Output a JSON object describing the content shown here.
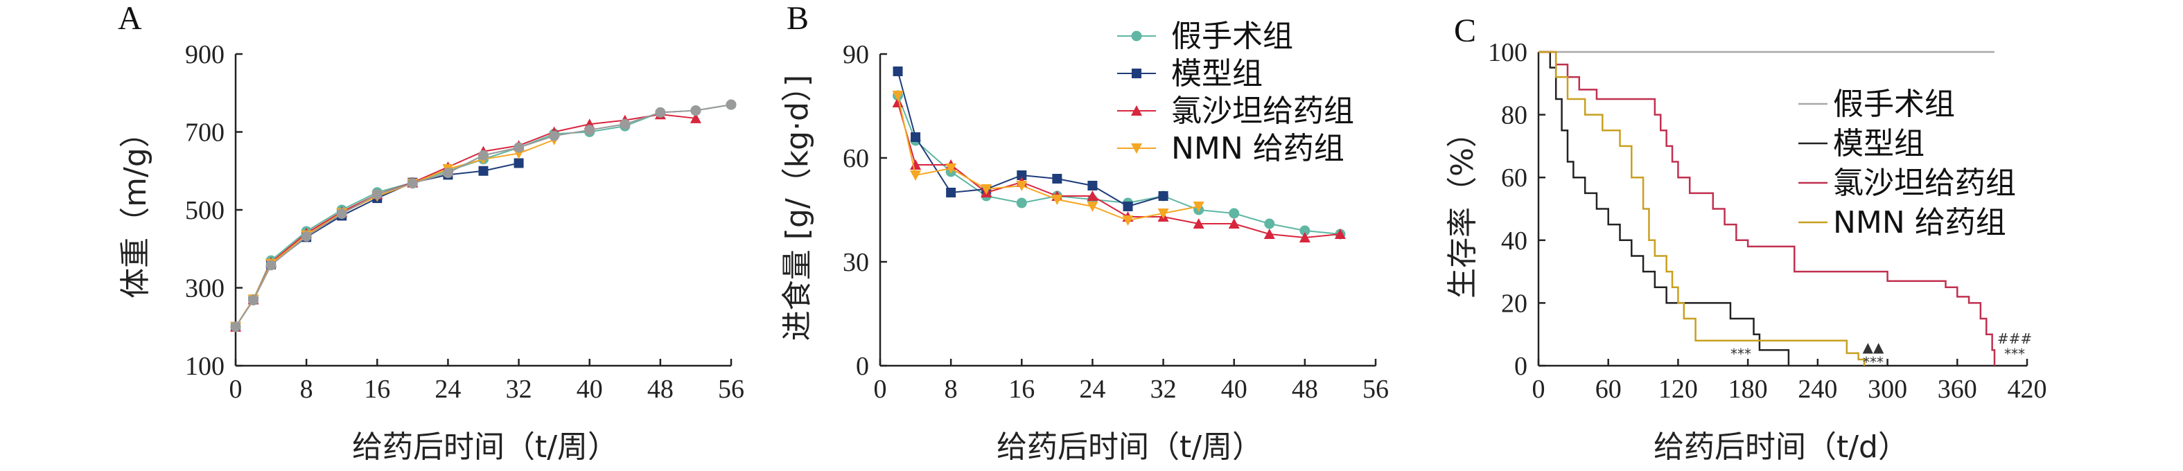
{
  "chart_data": [
    {
      "panel": "A",
      "type": "line",
      "ylabel": "体重（m/g）",
      "xlabel": "给药后时间（t/周）",
      "xlim": [
        0,
        56
      ],
      "ylim": [
        100,
        900
      ],
      "xticks": [
        0,
        8,
        16,
        24,
        32,
        40,
        48,
        56
      ],
      "yticks": [
        100,
        300,
        500,
        700,
        900
      ],
      "series": [
        {
          "name": "假手术组",
          "color": "#5fb6a3",
          "marker": "circle",
          "x": [
            0,
            2,
            4,
            8,
            12,
            16,
            20,
            24,
            28,
            32,
            36,
            40,
            44,
            48,
            52,
            56
          ],
          "y": [
            200,
            270,
            370,
            445,
            500,
            545,
            570,
            600,
            630,
            660,
            695,
            700,
            715,
            750,
            755,
            770
          ]
        },
        {
          "name": "模型组",
          "color": "#1f3d7a",
          "marker": "square",
          "x": [
            0,
            2,
            4,
            8,
            12,
            16,
            20,
            24,
            28,
            32
          ],
          "y": [
            200,
            270,
            360,
            430,
            485,
            530,
            570,
            590,
            600,
            620
          ]
        },
        {
          "name": "氯沙坦给药组",
          "color": "#d7263d",
          "marker": "triangle-up",
          "x": [
            0,
            2,
            4,
            8,
            12,
            16,
            20,
            24,
            28,
            32,
            36,
            40,
            44,
            48,
            52
          ],
          "y": [
            200,
            270,
            365,
            440,
            495,
            540,
            570,
            610,
            650,
            665,
            700,
            720,
            730,
            745,
            735
          ]
        },
        {
          "name": "NMN 给药组",
          "color": "#f5a623",
          "marker": "triangle-down",
          "x": [
            0,
            2,
            4,
            8,
            12,
            16,
            20,
            24,
            28,
            32,
            36
          ],
          "y": [
            200,
            270,
            362,
            435,
            492,
            535,
            568,
            605,
            630,
            645,
            680
          ]
        },
        {
          "name": "",
          "color": "#9a9a9a",
          "marker": "circle",
          "x": [
            0,
            2,
            4,
            8,
            12,
            16,
            20,
            24,
            28,
            32,
            36,
            40,
            44,
            48,
            52,
            56
          ],
          "y": [
            200,
            268,
            358,
            432,
            490,
            540,
            568,
            595,
            640,
            660,
            690,
            705,
            720,
            750,
            755,
            770
          ]
        }
      ]
    },
    {
      "panel": "B",
      "type": "line",
      "ylabel": "进食量 [g/（kg·d）]",
      "xlabel": "给药后时间（t/周）",
      "xlim": [
        0,
        56
      ],
      "ylim": [
        0,
        90
      ],
      "xticks": [
        0,
        8,
        16,
        24,
        32,
        40,
        48,
        56
      ],
      "yticks": [
        0,
        30,
        60,
        90
      ],
      "legend": "top-right",
      "series": [
        {
          "name": "假手术组",
          "color": "#5fb6a3",
          "marker": "circle",
          "x": [
            2,
            4,
            8,
            12,
            16,
            20,
            24,
            28,
            32,
            36,
            40,
            44,
            48,
            52
          ],
          "y": [
            78,
            65,
            56,
            49,
            47,
            49,
            48,
            47,
            49,
            45,
            44,
            41,
            39,
            38
          ]
        },
        {
          "name": "模型组",
          "color": "#1f3d7a",
          "marker": "square",
          "x": [
            2,
            4,
            8,
            12,
            16,
            20,
            24,
            28,
            32
          ],
          "y": [
            85,
            66,
            50,
            51,
            55,
            54,
            52,
            46,
            49
          ]
        },
        {
          "name": "氯沙坦给药组",
          "color": "#d7263d",
          "marker": "triangle-up",
          "x": [
            2,
            4,
            8,
            12,
            16,
            20,
            24,
            28,
            32,
            36,
            40,
            44,
            48,
            52
          ],
          "y": [
            76,
            58,
            58,
            50,
            53,
            49,
            49,
            43,
            43,
            41,
            41,
            38,
            37,
            38
          ]
        },
        {
          "name": "NMN 给药组",
          "color": "#f5a623",
          "marker": "triangle-down",
          "x": [
            2,
            4,
            8,
            12,
            16,
            20,
            24,
            28,
            32,
            36
          ],
          "y": [
            78,
            55,
            57,
            51,
            52,
            48,
            46,
            42,
            44,
            46
          ]
        }
      ]
    },
    {
      "panel": "C",
      "type": "step",
      "ylabel": "生存率（%）",
      "xlabel": "给药后时间（t/d）",
      "xlim": [
        0,
        420
      ],
      "ylim": [
        0,
        100
      ],
      "xticks": [
        0,
        60,
        120,
        180,
        240,
        300,
        360,
        420
      ],
      "yticks": [
        0,
        20,
        40,
        60,
        80,
        100
      ],
      "legend": "right",
      "annotations": [
        "***",
        "▲▲",
        "***",
        "###",
        "***"
      ],
      "series": [
        {
          "name": "假手术组",
          "color": "#a8a8a8",
          "x": [
            0,
            392
          ],
          "y": [
            100,
            100
          ]
        },
        {
          "name": "模型组",
          "color": "#222222",
          "x": [
            0,
            10,
            15,
            20,
            25,
            30,
            40,
            50,
            60,
            70,
            80,
            90,
            100,
            110,
            120,
            130,
            150,
            165,
            185,
            190,
            210,
            215
          ],
          "y": [
            100,
            95,
            85,
            75,
            65,
            60,
            55,
            50,
            45,
            40,
            35,
            30,
            25,
            20,
            20,
            20,
            20,
            15,
            10,
            5,
            5,
            0
          ]
        },
        {
          "name": "氯沙坦给药组",
          "color": "#c0304f",
          "x": [
            0,
            15,
            25,
            35,
            50,
            60,
            70,
            90,
            100,
            105,
            110,
            115,
            120,
            130,
            140,
            150,
            160,
            170,
            180,
            190,
            220,
            255,
            265,
            300,
            330,
            350,
            360,
            370,
            380,
            385,
            390,
            392
          ],
          "y": [
            100,
            96,
            92,
            88,
            85,
            85,
            85,
            85,
            80,
            75,
            70,
            65,
            60,
            55,
            55,
            50,
            45,
            40,
            38,
            38,
            30,
            30,
            30,
            27,
            27,
            25,
            22,
            20,
            15,
            10,
            5,
            0
          ]
        },
        {
          "name": "NMN 给药组",
          "color": "#c8a020",
          "x": [
            0,
            15,
            25,
            40,
            55,
            70,
            80,
            90,
            95,
            100,
            110,
            115,
            120,
            125,
            135,
            165,
            200,
            250,
            265,
            275,
            280
          ],
          "y": [
            100,
            92,
            85,
            80,
            75,
            70,
            60,
            50,
            40,
            35,
            30,
            25,
            20,
            15,
            8,
            8,
            8,
            8,
            4,
            2,
            0
          ]
        }
      ]
    }
  ]
}
